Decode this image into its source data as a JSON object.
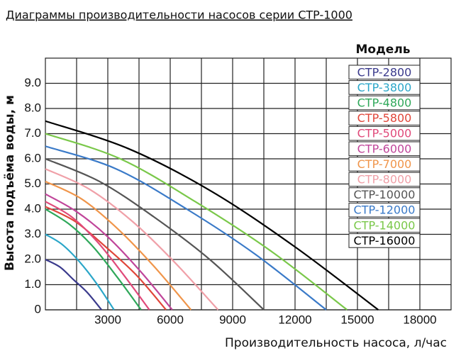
{
  "chart_data": {
    "type": "line",
    "title": "Диаграммы производительности насосов серии CTP-1000",
    "x_label": "Производительность насоса, л/час",
    "y_label": "Высота подъёма воды, м",
    "legend_title": "Модель",
    "legend_position": "upper right",
    "grid": true,
    "xlim": [
      0,
      19500
    ],
    "ylim": [
      0,
      10
    ],
    "xticks": [
      3000,
      6000,
      9000,
      12000,
      15000,
      18000
    ],
    "x_gridlines": [
      1500,
      3000,
      4500,
      6000,
      7500,
      9000,
      10500,
      12000,
      13500,
      15000,
      16500,
      18000
    ],
    "yticks": [
      0,
      {
        "value": 1,
        "label": "1.0"
      },
      {
        "value": 2,
        "label": "2.0"
      },
      {
        "value": 3,
        "label": "3.0"
      },
      {
        "value": 4,
        "label": "4.0"
      },
      {
        "value": 5,
        "label": "5.0"
      },
      {
        "value": 6,
        "label": "6.0"
      },
      {
        "value": 7,
        "label": "7.0"
      },
      {
        "value": 8,
        "label": "8.0"
      },
      {
        "value": 9,
        "label": "9.0"
      }
    ],
    "series": [
      {
        "name": "CTP-2800",
        "color": "#3a3a8c",
        "x": [
          0,
          700,
          1350,
          2000,
          2700
        ],
        "values": [
          2.0,
          1.7,
          1.2,
          0.7,
          0
        ]
      },
      {
        "name": "CTP-3800",
        "color": "#2aa6c8",
        "x": [
          0,
          800,
          1650,
          2500,
          3300
        ],
        "values": [
          3.0,
          2.6,
          1.9,
          1.0,
          0
        ]
      },
      {
        "name": "CTP-4800",
        "color": "#2fa85a",
        "x": [
          0,
          1150,
          2300,
          3450,
          4600
        ],
        "values": [
          4.0,
          3.4,
          2.5,
          1.3,
          0
        ]
      },
      {
        "name": "CTP-5800",
        "color": "#e0463a",
        "x": [
          0,
          1450,
          2900,
          4350,
          5800
        ],
        "values": [
          4.1,
          3.5,
          2.5,
          1.4,
          0
        ]
      },
      {
        "name": "CTP-5000",
        "color": "#e04a7a",
        "x": [
          0,
          1250,
          2500,
          3750,
          5000
        ],
        "values": [
          4.3,
          3.7,
          2.7,
          1.4,
          0
        ]
      },
      {
        "name": "CTP-6000",
        "color": "#c0459a",
        "x": [
          0,
          1500,
          3000,
          4600,
          6100
        ],
        "values": [
          4.6,
          3.9,
          2.9,
          1.5,
          0
        ]
      },
      {
        "name": "CTP-7000",
        "color": "#f0954a",
        "x": [
          0,
          1750,
          3500,
          5250,
          7000
        ],
        "values": [
          5.1,
          4.4,
          3.2,
          1.7,
          0
        ]
      },
      {
        "name": "CTP-8000",
        "color": "#f0a0a8",
        "x": [
          0,
          2100,
          4200,
          6200,
          8300
        ],
        "values": [
          5.6,
          4.8,
          3.5,
          1.9,
          0
        ]
      },
      {
        "name": "CTP-10000",
        "color": "#555555",
        "x": [
          0,
          2600,
          5200,
          7900,
          10500
        ],
        "values": [
          6.0,
          5.1,
          3.7,
          2.0,
          0
        ]
      },
      {
        "name": "CTP-12000",
        "color": "#3a7ac8",
        "x": [
          0,
          3400,
          6800,
          10100,
          13500
        ],
        "values": [
          6.5,
          5.6,
          4.0,
          2.2,
          0
        ]
      },
      {
        "name": "CTP-14000",
        "color": "#7ac84a",
        "x": [
          0,
          3600,
          7200,
          10900,
          14500
        ],
        "values": [
          7.0,
          6.0,
          4.3,
          2.3,
          0
        ]
      },
      {
        "name": "CTP-16000",
        "color": "#000000",
        "x": [
          0,
          4000,
          8000,
          12000,
          16000
        ],
        "values": [
          7.5,
          6.4,
          4.7,
          2.5,
          0
        ]
      }
    ]
  }
}
